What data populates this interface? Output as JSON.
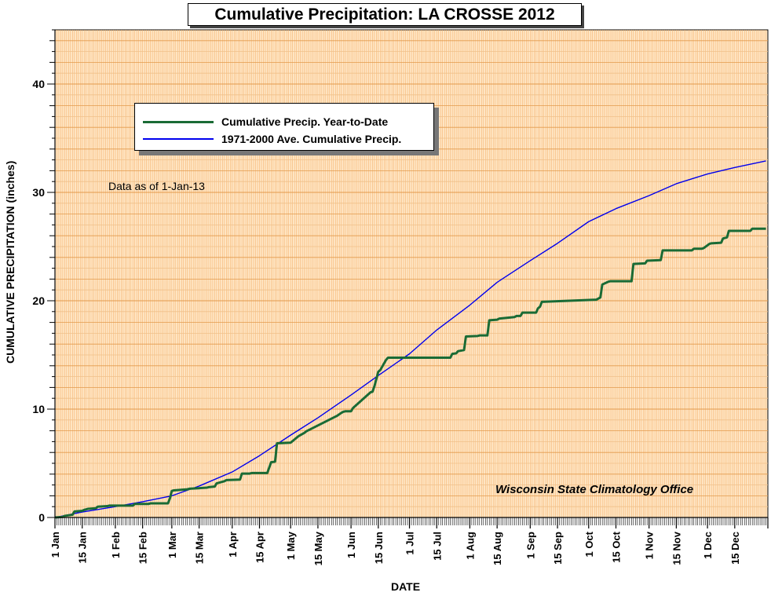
{
  "chart_data": {
    "type": "line",
    "title": "Cumulative Precipitation: LA CROSSE 2012",
    "xlabel": "DATE",
    "ylabel": "CUMULATIVE PRECIPITATION (inches)",
    "ylim": [
      0,
      45
    ],
    "yticks": [
      0,
      10,
      20,
      30,
      40
    ],
    "x_tick_labels": [
      "1 Jan",
      "15 Jan",
      "1 Feb",
      "15 Feb",
      "1 Mar",
      "15 Mar",
      "1 Apr",
      "15 Apr",
      "1 May",
      "15 May",
      "1 Jun",
      "15 Jun",
      "1 Jul",
      "15 Jul",
      "1 Aug",
      "15 Aug",
      "1 Sep",
      "15 Sep",
      "1 Oct",
      "15 Oct",
      "1 Nov",
      "15 Nov",
      "1 Dec",
      "15 Dec"
    ],
    "annotation": "Data as of 1-Jan-13",
    "credit": "Wisconsin State Climatology Office",
    "grid": true,
    "legend_position": "top-left",
    "series": [
      {
        "name": "Cumulative Precip. Year-to-Date",
        "color": "#1a6b35",
        "x": [
          "2012-01-01",
          "2012-01-05",
          "2012-01-06",
          "2012-01-10",
          "2012-01-11",
          "2012-01-14",
          "2012-01-15",
          "2012-01-16",
          "2012-01-17",
          "2012-01-18",
          "2012-01-22",
          "2012-01-23",
          "2012-01-28",
          "2012-01-29",
          "2012-02-10",
          "2012-02-11",
          "2012-02-18",
          "2012-02-19",
          "2012-02-28",
          "2012-02-29",
          "2012-03-01",
          "2012-03-02",
          "2012-03-09",
          "2012-03-10",
          "2012-03-19",
          "2012-03-20",
          "2012-03-23",
          "2012-03-24",
          "2012-03-28",
          "2012-03-29",
          "2012-04-05",
          "2012-04-06",
          "2012-04-10",
          "2012-04-11",
          "2012-04-19",
          "2012-04-20",
          "2012-04-21",
          "2012-04-23",
          "2012-04-24",
          "2012-05-01",
          "2012-05-03",
          "2012-05-05",
          "2012-05-07",
          "2012-05-08",
          "2012-05-09",
          "2012-05-25",
          "2012-05-27",
          "2012-05-28",
          "2012-05-29",
          "2012-06-01",
          "2012-06-02",
          "2012-06-11",
          "2012-06-12",
          "2012-06-13",
          "2012-06-15",
          "2012-06-16",
          "2012-06-19",
          "2012-06-20",
          "2012-07-22",
          "2012-07-23",
          "2012-07-25",
          "2012-07-26",
          "2012-07-29",
          "2012-07-30",
          "2012-08-05",
          "2012-08-06",
          "2012-08-10",
          "2012-08-11",
          "2012-08-15",
          "2012-08-16",
          "2012-08-24",
          "2012-08-25",
          "2012-08-27",
          "2012-08-28",
          "2012-09-04",
          "2012-09-05",
          "2012-09-06",
          "2012-09-07",
          "2012-10-05",
          "2012-10-06",
          "2012-10-07",
          "2012-10-08",
          "2012-10-11",
          "2012-10-12",
          "2012-10-23",
          "2012-10-24",
          "2012-10-30",
          "2012-10-31",
          "2012-11-07",
          "2012-11-08",
          "2012-11-23",
          "2012-11-24",
          "2012-11-28",
          "2012-11-29",
          "2012-12-02",
          "2012-12-03",
          "2012-12-08",
          "2012-12-09",
          "2012-12-11",
          "2012-12-12",
          "2012-12-23",
          "2012-12-24",
          "2012-12-31"
        ],
        "values": [
          0.0,
          0.05,
          0.15,
          0.25,
          0.55,
          0.6,
          0.62,
          0.7,
          0.75,
          0.8,
          0.85,
          1.0,
          1.05,
          1.1,
          1.1,
          1.25,
          1.25,
          1.3,
          1.3,
          1.75,
          2.45,
          2.5,
          2.6,
          2.65,
          2.75,
          2.8,
          2.85,
          3.15,
          3.35,
          3.45,
          3.5,
          4.05,
          4.05,
          4.1,
          4.1,
          4.6,
          5.1,
          5.15,
          6.85,
          6.9,
          7.2,
          7.5,
          7.7,
          7.8,
          7.95,
          9.4,
          9.65,
          9.75,
          9.8,
          9.8,
          10.1,
          11.55,
          11.6,
          12.1,
          13.45,
          13.6,
          14.55,
          14.75,
          14.75,
          15.1,
          15.15,
          15.35,
          15.45,
          16.7,
          16.75,
          16.8,
          16.8,
          18.2,
          18.25,
          18.35,
          18.5,
          18.6,
          18.6,
          18.9,
          18.9,
          19.3,
          19.45,
          19.9,
          20.1,
          20.2,
          20.3,
          21.5,
          21.75,
          21.8,
          21.8,
          23.4,
          23.45,
          23.7,
          23.75,
          24.65,
          24.65,
          24.8,
          24.8,
          24.85,
          25.25,
          25.3,
          25.35,
          25.75,
          25.85,
          26.45,
          26.45,
          26.65,
          26.65
        ]
      },
      {
        "name": "1971-2000 Ave. Cumulative Precip.",
        "color": "#0000ee",
        "x": [
          "2012-01-01",
          "2012-01-15",
          "2012-02-01",
          "2012-02-15",
          "2012-03-01",
          "2012-03-15",
          "2012-04-01",
          "2012-04-15",
          "2012-05-01",
          "2012-05-15",
          "2012-06-01",
          "2012-06-15",
          "2012-07-01",
          "2012-07-15",
          "2012-08-01",
          "2012-08-15",
          "2012-09-01",
          "2012-09-15",
          "2012-10-01",
          "2012-10-15",
          "2012-11-01",
          "2012-11-15",
          "2012-12-01",
          "2012-12-15",
          "2012-12-31"
        ],
        "values": [
          0.0,
          0.5,
          1.0,
          1.45,
          2.0,
          2.9,
          4.2,
          5.7,
          7.6,
          9.2,
          11.3,
          13.1,
          15.1,
          17.3,
          19.6,
          21.7,
          23.7,
          25.3,
          27.3,
          28.5,
          29.7,
          30.8,
          31.7,
          32.3,
          32.9
        ]
      }
    ]
  }
}
